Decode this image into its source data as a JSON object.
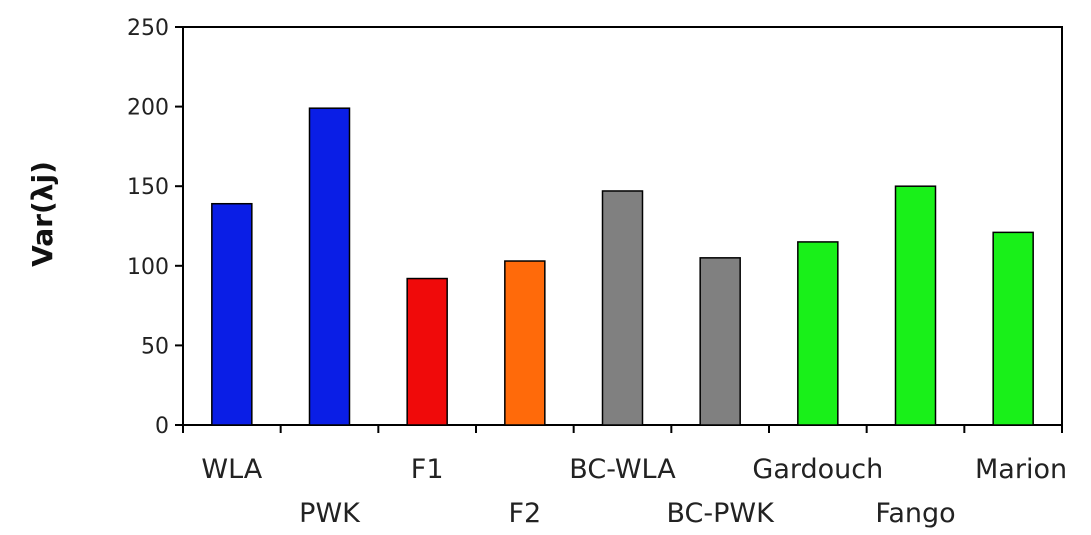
{
  "chart_data": {
    "type": "bar",
    "title": "",
    "xlabel": "",
    "ylabel": "Var(λj)",
    "ylim": [
      0,
      250
    ],
    "yticks": [
      0,
      50,
      100,
      150,
      200,
      250
    ],
    "grid": false,
    "legend": "none",
    "categories": [
      "WLA",
      "PWK",
      "F1",
      "F2",
      "BC-WLA",
      "BC-PWK",
      "Gardouch",
      "Fango",
      "Marion"
    ],
    "values": [
      139,
      199,
      92,
      103,
      147,
      105,
      115,
      150,
      121
    ],
    "colors": [
      "#0a1ee6",
      "#0a1ee6",
      "#f00a0a",
      "#ff6a0a",
      "#808080",
      "#808080",
      "#19f019",
      "#19f019",
      "#19f019"
    ]
  }
}
